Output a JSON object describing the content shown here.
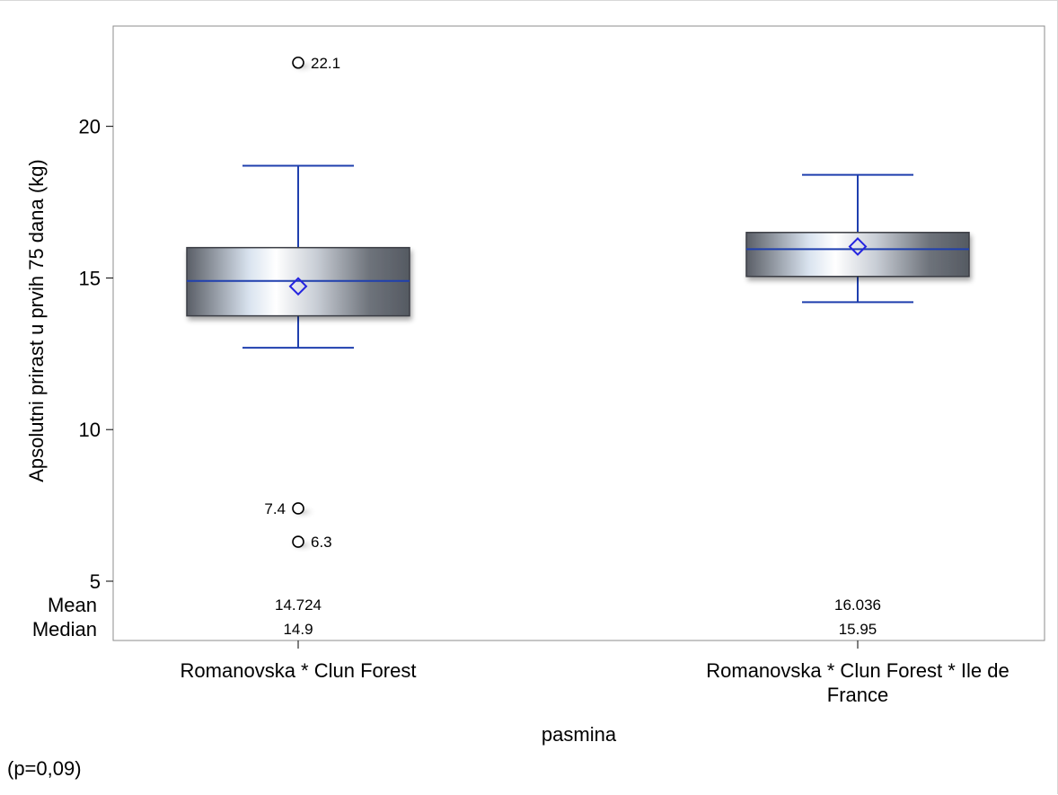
{
  "chart_data": {
    "type": "box",
    "xlabel": "pasmina",
    "ylabel": "Apsolutni prirast u prvih 75 dana (kg)",
    "ylim": [
      3.4,
      23.1
    ],
    "yticks": [
      5,
      10,
      15,
      20
    ],
    "categories": [
      [
        "Romanovska * Clun Forest"
      ],
      [
        "Romanovska * Clun Forest * Ile de",
        "France"
      ]
    ],
    "boxes": [
      {
        "q1": 13.75,
        "median": 14.9,
        "q3": 16.0,
        "whisker_low": 12.7,
        "whisker_high": 18.7,
        "mean": 14.724,
        "outliers": [
          {
            "value": 22.1,
            "label": "22.1",
            "label_side": "right"
          },
          {
            "value": 7.4,
            "label": "7.4",
            "label_side": "left"
          },
          {
            "value": 6.3,
            "label": "6.3",
            "label_side": "right"
          }
        ]
      },
      {
        "q1": 15.05,
        "median": 15.95,
        "q3": 16.5,
        "whisker_low": 14.2,
        "whisker_high": 18.4,
        "mean": 16.036,
        "outliers": []
      }
    ],
    "stats_table": {
      "row_labels": [
        "Mean",
        "Median"
      ],
      "rows": [
        [
          "14.724",
          "16.036"
        ],
        [
          "14.9",
          "15.95"
        ]
      ]
    },
    "colors": {
      "box_line": "#1f3fae",
      "mean_marker": "#2424e0",
      "box_fill_dark": "#5a5e66",
      "box_fill_light": "#ffffff"
    },
    "grid": false,
    "legend": "none"
  },
  "footnote": "(p=0,09)"
}
